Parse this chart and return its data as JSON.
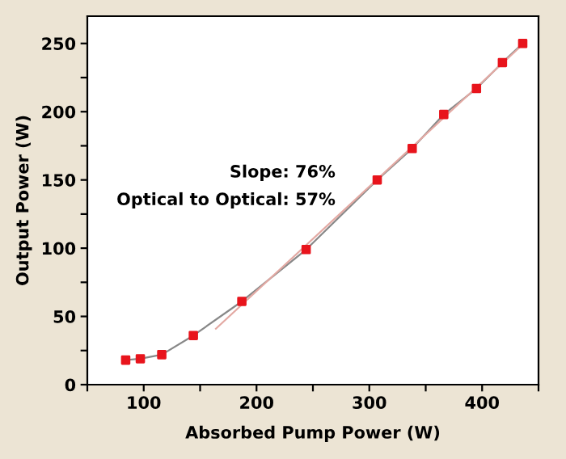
{
  "chart_data": {
    "type": "line",
    "xlabel": "Absorbed Pump Power (W)",
    "ylabel": "Output Power (W)",
    "annotations": [
      "Slope: 76%",
      "Optical to Optical: 57%"
    ],
    "series": [
      {
        "color": "#888888",
        "marker": "none",
        "x": [
          84,
          97,
          116,
          144,
          187,
          244,
          307,
          338,
          366,
          395,
          418,
          436
        ],
        "values": [
          18,
          19,
          22,
          36,
          61,
          99,
          150,
          173,
          198,
          217,
          236,
          250
        ]
      },
      {
        "type": "scatter",
        "color": "#e8141c",
        "marker": "square",
        "x": [
          84,
          97,
          116,
          144,
          187,
          244,
          307,
          338,
          366,
          395,
          418,
          436
        ],
        "values": [
          18,
          19,
          22,
          36,
          61,
          99,
          150,
          173,
          198,
          217,
          236,
          250
        ]
      },
      {
        "color": "#e3a9a3",
        "marker": "none",
        "x": [
          164,
          437
        ],
        "values": [
          41,
          250
        ]
      }
    ],
    "xlim": [
      50,
      450
    ],
    "ylim": [
      0,
      270
    ],
    "xticks": [
      {
        "value": 50,
        "label": null
      },
      100,
      {
        "value": 150,
        "label": null
      },
      200,
      {
        "value": 250,
        "label": null
      },
      300,
      {
        "value": 350,
        "label": null
      },
      400,
      {
        "value": 450,
        "label": null
      }
    ],
    "yticks": [
      0,
      {
        "value": 25,
        "label": null
      },
      50,
      {
        "value": 75,
        "label": null
      },
      100,
      {
        "value": 125,
        "label": null
      },
      150,
      {
        "value": 175,
        "label": null
      },
      200,
      {
        "value": 225,
        "label": null
      },
      250
    ],
    "grid": false,
    "legend": false
  }
}
